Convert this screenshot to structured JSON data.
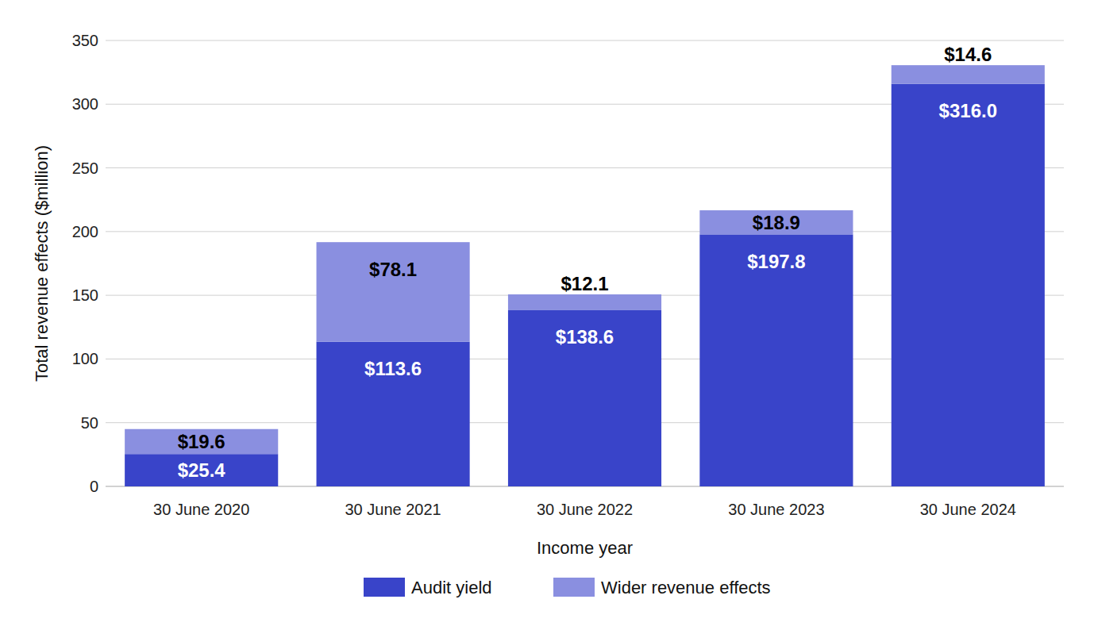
{
  "chart_data": {
    "type": "bar",
    "stacked": true,
    "data_labels": true,
    "grid": true,
    "legend": "bottom",
    "x_label": "Income year",
    "y_label": "Total revenue effects ($million)",
    "categories": [
      "30 June 2020",
      "30 June 2021",
      "30 June 2022",
      "30 June 2023",
      "30 June 2024"
    ],
    "ylim": [
      0,
      350
    ],
    "yticks": [
      0,
      50,
      100,
      150,
      200,
      250,
      300,
      350
    ],
    "series": [
      {
        "name": "Audit yield",
        "color": "#3944c9",
        "values": [
          25.4,
          113.6,
          138.6,
          197.8,
          316.0
        ],
        "value_labels": [
          "$25.4",
          "$113.6",
          "$138.6",
          "$197.8",
          "$316.0"
        ]
      },
      {
        "name": "Wider revenue effects",
        "color": "#8a8fe0",
        "values": [
          19.6,
          78.1,
          12.1,
          18.9,
          14.6
        ],
        "value_labels": [
          "$19.6",
          "$78.1",
          "$12.1",
          "$18.9",
          "$14.6"
        ]
      }
    ]
  }
}
